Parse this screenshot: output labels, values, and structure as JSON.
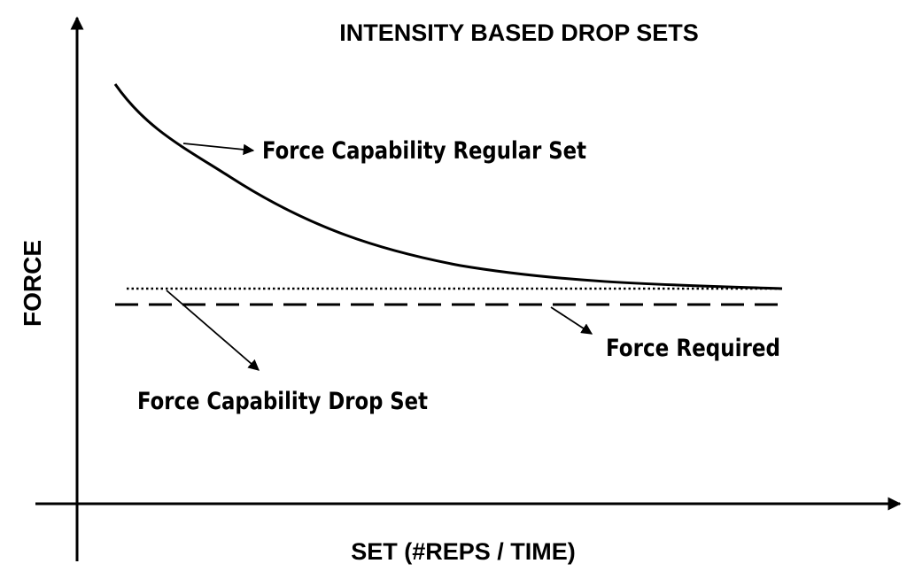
{
  "title": "INTENSITY BASED DROP SETS",
  "axes": {
    "y_label": "FORCE",
    "x_label": "SET (#REPS / TIME)"
  },
  "labels": {
    "regular_set": "Force Capability Regular Set",
    "force_required": "Force Required",
    "drop_set": "Force Capability Drop Set"
  },
  "colors": {
    "ink": "#000000",
    "background": "#ffffff"
  }
}
